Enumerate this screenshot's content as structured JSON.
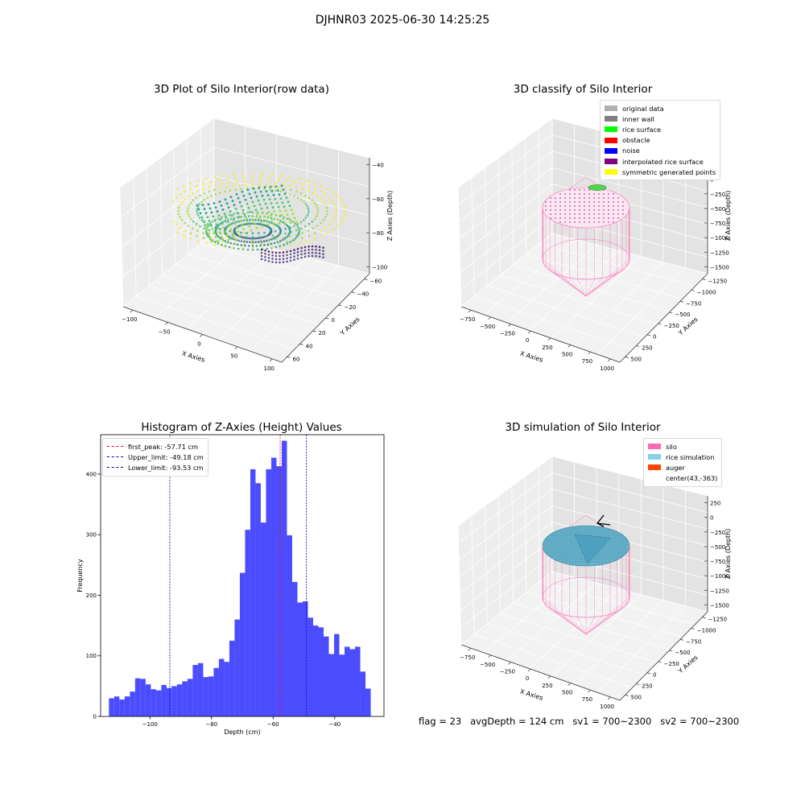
{
  "suptitle": "DJHNR03 2025-06-30 14:25:25",
  "footer": "flag = 23   avgDepth = 124 cm   sv1 = 700~2300   sv2 = 700~2300",
  "chart_data": [
    {
      "type": "scatter",
      "title": "3D Plot of Silo Interior(row data)",
      "xlabel": "X Axies",
      "ylabel": "Y Axies",
      "zlabel": "Z Axies (Depth)",
      "xticks": [
        "−100",
        "−50",
        "0",
        "50",
        "100"
      ],
      "yticks": [
        "−60",
        "−40",
        "−20",
        "0",
        "20",
        "40",
        "60"
      ],
      "zticks": [
        "−100",
        "−80",
        "−60",
        "−40"
      ],
      "colormap": "viridis"
    },
    {
      "type": "scatter",
      "title": "3D classify of Silo Interior",
      "xlabel": "X Axies",
      "ylabel": "Y Axies",
      "zlabel": "Z Axies (Depth)",
      "xticks": [
        "−750",
        "−500",
        "−250",
        "0",
        "250",
        "500",
        "750",
        "1000"
      ],
      "yticks": [
        "−1250",
        "−1000",
        "−750",
        "−500",
        "−250",
        "0",
        "250",
        "500"
      ],
      "zticks": [
        "−1500",
        "−1250",
        "−1000",
        "−750",
        "−500",
        "−250",
        "0",
        "250"
      ],
      "legend": [
        {
          "label": "original data",
          "color": "#b0b0b0"
        },
        {
          "label": "inner wall",
          "color": "#808080"
        },
        {
          "label": "rice surface",
          "color": "#00ff00"
        },
        {
          "label": "obstacle",
          "color": "#ff0000"
        },
        {
          "label": "noise",
          "color": "#0000ff"
        },
        {
          "label": "interpolated rice surface",
          "color": "#800080"
        },
        {
          "label": "symmetric generated points",
          "color": "#ffff00"
        }
      ]
    },
    {
      "type": "bar",
      "title": "Histogram of Z-Axies (Height) Values",
      "xlabel": "Depth (cm)",
      "ylabel": "Frequency",
      "xlim": [
        -116,
        -24
      ],
      "ylim": [
        0,
        465
      ],
      "xticks": [
        -100,
        -80,
        -60,
        -40
      ],
      "yticks": [
        0,
        100,
        200,
        300,
        400
      ],
      "bar_color": "#4c4cff",
      "bin_start": -113.3,
      "bin_width": 1.7,
      "values": [
        30,
        33,
        28,
        33,
        41,
        63,
        62,
        53,
        45,
        43,
        52,
        47,
        50,
        53,
        58,
        62,
        85,
        88,
        65,
        66,
        80,
        95,
        90,
        125,
        160,
        237,
        308,
        408,
        385,
        320,
        408,
        427,
        413,
        455,
        299,
        222,
        188,
        190,
        163,
        150,
        147,
        132,
        103,
        136,
        102,
        115,
        111,
        115,
        74,
        46
      ],
      "lines": [
        {
          "label": "first_peak: -57.71 cm",
          "x": -57.71,
          "color": "#ff0000"
        },
        {
          "label": "Upper_limit: -49.18 cm",
          "x": -49.18,
          "color": "#0000cc"
        },
        {
          "label": "Lower_limit: -93.53 cm",
          "x": -93.53,
          "color": "#0000cc"
        }
      ]
    },
    {
      "type": "scatter",
      "title": "3D simulation of Silo Interior",
      "xlabel": "X Axies",
      "ylabel": "Y Axies",
      "zlabel": "Z Axies (Depth)",
      "xticks": [
        "−750",
        "−500",
        "−250",
        "0",
        "250",
        "500",
        "750",
        "1000"
      ],
      "yticks": [
        "−1250",
        "−1000",
        "−750",
        "−500",
        "−250",
        "0",
        "250",
        "500"
      ],
      "zticks": [
        "−1500",
        "−1250",
        "−1000",
        "−750",
        "−500",
        "−250",
        "0",
        "250"
      ],
      "legend": [
        {
          "label": "silo",
          "color": "#ff69b4"
        },
        {
          "label": "rice simulation",
          "color": "#87ceeb"
        },
        {
          "label": "auger",
          "color": "#ff4500"
        },
        {
          "label": "center(43,-363)",
          "color": ""
        }
      ]
    }
  ]
}
